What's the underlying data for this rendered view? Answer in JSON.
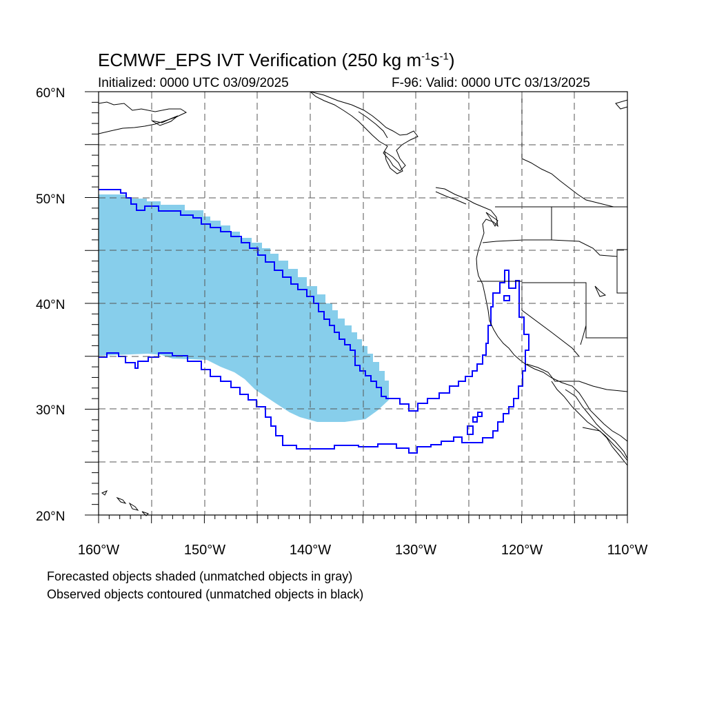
{
  "title": {
    "main": "ECMWF_EPS IVT Verification (250 kg m",
    "sup1": "-1",
    "mid": "s",
    "sup2": "-1",
    "end": ")"
  },
  "initialized": "Initialized: 0000 UTC 03/09/2025",
  "valid": "F-96: Valid: 0000 UTC 03/13/2025",
  "axes": {
    "lat_labels": [
      "60°N",
      "50°N",
      "40°N",
      "30°N",
      "20°N"
    ],
    "lon_labels": [
      "160°W",
      "150°W",
      "140°W",
      "130°W",
      "120°W",
      "110°W"
    ],
    "lat_range": [
      20,
      60
    ],
    "lon_range": [
      -160,
      -110
    ]
  },
  "legend": {
    "forecast_note": "Forecasted objects shaded (unmatched objects in gray)",
    "observed_note": "Observed objects contoured (unmatched objects in black)"
  },
  "colors": {
    "forecast_fill": "#87ceeb",
    "observed_contour": "#0000ff",
    "coastline": "#000000",
    "grid": "#555555"
  }
}
